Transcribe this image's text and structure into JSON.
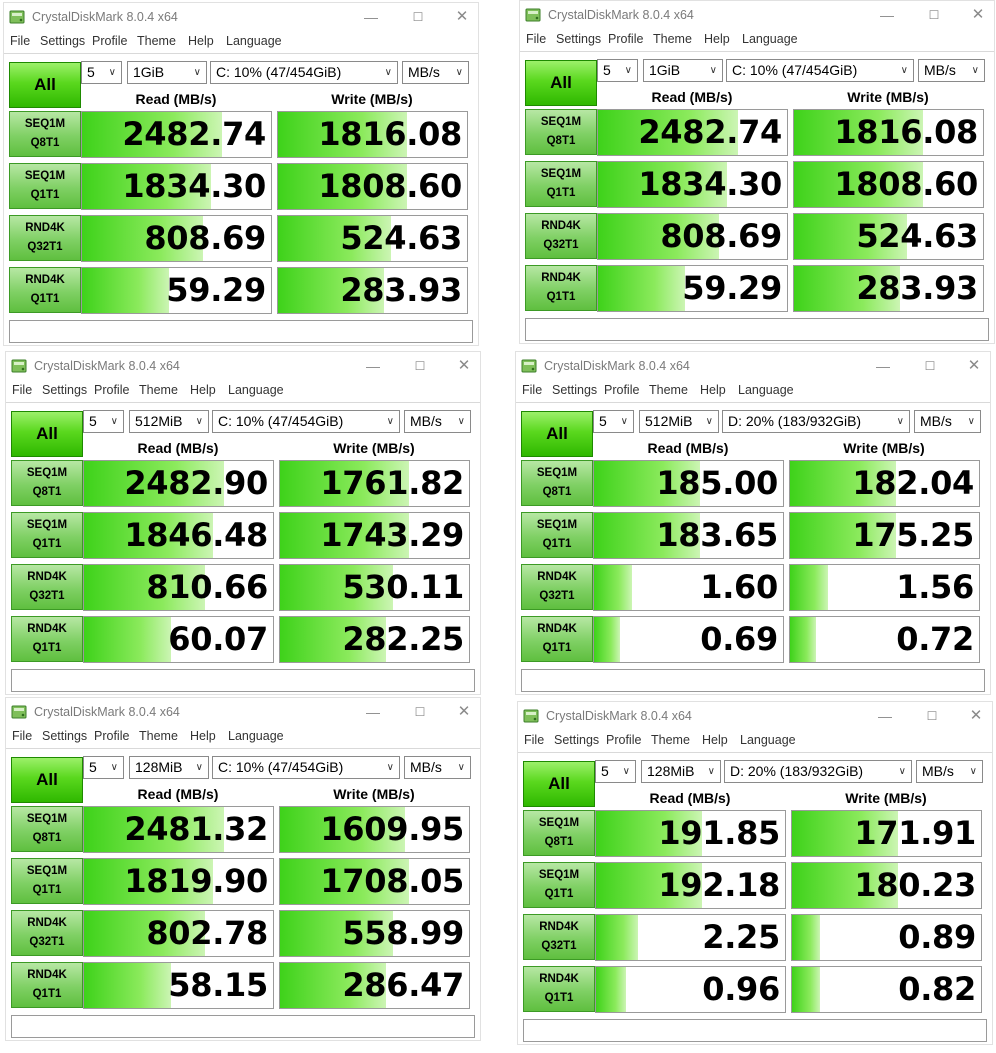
{
  "app_title": "CrystalDiskMark 8.0.4 x64",
  "menu": [
    "File",
    "Settings",
    "Profile",
    "Theme",
    "Help",
    "Language"
  ],
  "all_label": "All",
  "col_headers": {
    "read": "Read (MB/s)",
    "write": "Write (MB/s)"
  },
  "test_labels": [
    [
      "SEQ1M",
      "Q8T1"
    ],
    [
      "SEQ1M",
      "Q1T1"
    ],
    [
      "RND4K",
      "Q32T1"
    ],
    [
      "RND4K",
      "Q1T1"
    ]
  ],
  "colors": {
    "accent_green": "#2fb800",
    "bar_green": "#3ed21a"
  },
  "icons": [
    "app-icon",
    "minimize-icon",
    "maximize-icon",
    "close-icon",
    "chevron-down-icon"
  ],
  "windows": [
    {
      "count": "5",
      "size": "1GiB",
      "drive": "C: 10% (47/454GiB)",
      "unit": "MB/s",
      "rows": [
        {
          "read": "2482.74",
          "write": "1816.08",
          "read_fill": 0.74,
          "write_fill": 0.68
        },
        {
          "read": "1834.30",
          "write": "1808.60",
          "read_fill": 0.68,
          "write_fill": 0.68
        },
        {
          "read": "808.69",
          "write": "524.63",
          "read_fill": 0.64,
          "write_fill": 0.6
        },
        {
          "read": "59.29",
          "write": "283.93",
          "read_fill": 0.46,
          "write_fill": 0.56
        }
      ]
    },
    {
      "count": "5",
      "size": "1GiB",
      "drive": "C: 10% (47/454GiB)",
      "unit": "MB/s",
      "rows": [
        {
          "read": "2482.74",
          "write": "1816.08",
          "read_fill": 0.74,
          "write_fill": 0.68
        },
        {
          "read": "1834.30",
          "write": "1808.60",
          "read_fill": 0.68,
          "write_fill": 0.68
        },
        {
          "read": "808.69",
          "write": "524.63",
          "read_fill": 0.64,
          "write_fill": 0.6
        },
        {
          "read": "59.29",
          "write": "283.93",
          "read_fill": 0.46,
          "write_fill": 0.56
        }
      ]
    },
    {
      "count": "5",
      "size": "512MiB",
      "drive": "C: 10% (47/454GiB)",
      "unit": "MB/s",
      "rows": [
        {
          "read": "2482.90",
          "write": "1761.82",
          "read_fill": 0.74,
          "write_fill": 0.68
        },
        {
          "read": "1846.48",
          "write": "1743.29",
          "read_fill": 0.68,
          "write_fill": 0.68
        },
        {
          "read": "810.66",
          "write": "530.11",
          "read_fill": 0.64,
          "write_fill": 0.6
        },
        {
          "read": "60.07",
          "write": "282.25",
          "read_fill": 0.46,
          "write_fill": 0.56
        }
      ]
    },
    {
      "count": "5",
      "size": "512MiB",
      "drive": "D: 20% (183/932GiB)",
      "unit": "MB/s",
      "rows": [
        {
          "read": "185.00",
          "write": "182.04",
          "read_fill": 0.56,
          "write_fill": 0.56
        },
        {
          "read": "183.65",
          "write": "175.25",
          "read_fill": 0.56,
          "write_fill": 0.56
        },
        {
          "read": "1.60",
          "write": "1.56",
          "read_fill": 0.2,
          "write_fill": 0.2
        },
        {
          "read": "0.69",
          "write": "0.72",
          "read_fill": 0.14,
          "write_fill": 0.14
        }
      ]
    },
    {
      "count": "5",
      "size": "128MiB",
      "drive": "C: 10% (47/454GiB)",
      "unit": "MB/s",
      "rows": [
        {
          "read": "2481.32",
          "write": "1609.95",
          "read_fill": 0.74,
          "write_fill": 0.66
        },
        {
          "read": "1819.90",
          "write": "1708.05",
          "read_fill": 0.68,
          "write_fill": 0.68
        },
        {
          "read": "802.78",
          "write": "558.99",
          "read_fill": 0.64,
          "write_fill": 0.6
        },
        {
          "read": "58.15",
          "write": "286.47",
          "read_fill": 0.46,
          "write_fill": 0.56
        }
      ]
    },
    {
      "count": "5",
      "size": "128MiB",
      "drive": "D: 20% (183/932GiB)",
      "unit": "MB/s",
      "rows": [
        {
          "read": "191.85",
          "write": "171.91",
          "read_fill": 0.56,
          "write_fill": 0.56
        },
        {
          "read": "192.18",
          "write": "180.23",
          "read_fill": 0.56,
          "write_fill": 0.56
        },
        {
          "read": "2.25",
          "write": "0.89",
          "read_fill": 0.22,
          "write_fill": 0.15
        },
        {
          "read": "0.96",
          "write": "0.82",
          "read_fill": 0.16,
          "write_fill": 0.15
        }
      ]
    }
  ]
}
